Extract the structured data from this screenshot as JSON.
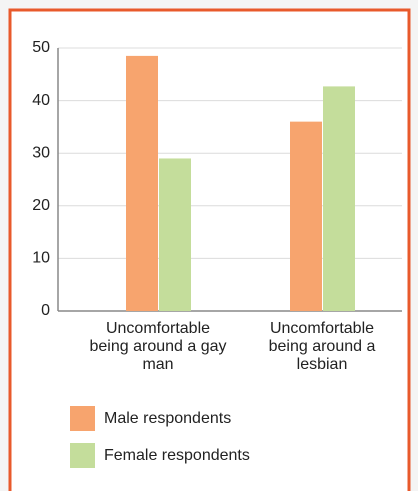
{
  "chart_data": {
    "type": "bar",
    "categories": [
      "Uncomfortable being around a gay man",
      "Uncomfortable being around a lesbian"
    ],
    "series": [
      {
        "name": "Male respondents",
        "color": "#f7a46e",
        "values": [
          48.5,
          36
        ]
      },
      {
        "name": "Female respondents",
        "color": "#c4dd9b",
        "values": [
          29,
          42.7
        ]
      }
    ],
    "ylim": [
      0,
      50
    ],
    "yticks": [
      0,
      10,
      20,
      30,
      40,
      50
    ],
    "grid": true
  }
}
